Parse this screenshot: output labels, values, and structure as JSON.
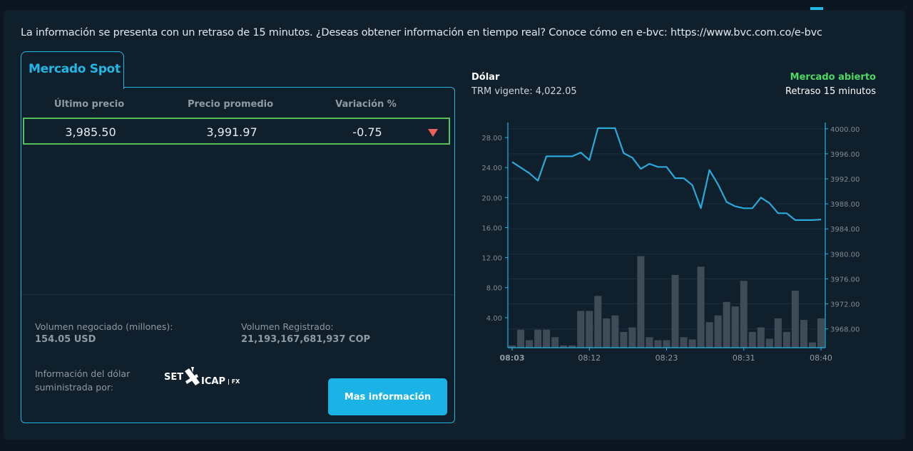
{
  "notice": "La información se presenta con un retraso de 15 minutos. ¿Deseas obtener información en tiempo real? Conoce cómo en e-bvc: https://www.bvc.com.co/e-bvc",
  "tab": {
    "label": "Mercado Spot"
  },
  "table": {
    "headers": [
      "Último precio",
      "Precio promedio",
      "Variación %"
    ],
    "row": {
      "last_price": "3,985.50",
      "avg_price": "3,991.97",
      "variation": "-0.75"
    }
  },
  "volume": {
    "negotiated_label": "Volumen negociado (millones):",
    "negotiated_value": "154.05 USD",
    "registered_label": "Volumen Registrado:",
    "registered_value": "21,193,167,681,937 COP"
  },
  "provider": {
    "label_line1": "Información del dólar",
    "label_line2": "suministrada por:",
    "logo_text": "SET ICAP | FX"
  },
  "button": {
    "label": "Mas información"
  },
  "chart_header": {
    "title": "Dólar",
    "trm": "TRM vigente: 4,022.05",
    "status": "Mercado abierto",
    "delay": "Retraso 15 minutos"
  },
  "colors": {
    "accent": "#22b8e6",
    "line": "#2ba9d8",
    "bars": "#3f4c57",
    "open": "#4cd964",
    "down": "#f0605a",
    "highlight": "#55c05b"
  },
  "chart_data": {
    "type": "bar+line",
    "x_ticks": [
      "08:03",
      "08:12",
      "08:23",
      "08:31",
      "08:40"
    ],
    "x_tick_index": [
      0,
      9,
      18,
      27,
      36
    ],
    "volume_axis": {
      "ticks": [
        "4.00",
        "8.00",
        "12.00",
        "16.00",
        "20.00",
        "24.00",
        "28.00"
      ],
      "range": [
        0,
        30
      ]
    },
    "price_axis": {
      "ticks": [
        "3968.00",
        "3972.00",
        "3976.00",
        "3980.00",
        "3984.00",
        "3988.00",
        "3992.00",
        "3996.00",
        "4000.00"
      ],
      "range": [
        3965,
        4001
      ]
    },
    "series": [
      {
        "kind": "bar",
        "values": [
          0.3,
          2.4,
          1.0,
          2.4,
          2.4,
          1.4,
          0.3,
          0.3,
          4.9,
          4.9,
          6.9,
          3.9,
          4.3,
          2.1,
          2.7,
          12.2,
          1.4,
          1.0,
          1.0,
          9.7,
          1.4,
          1.1,
          10.8,
          3.4,
          4.3,
          6.1,
          5.5,
          8.9,
          2.1,
          2.7,
          1.2,
          3.9,
          2.1,
          7.6,
          3.7,
          0.7,
          3.9
        ]
      },
      {
        "kind": "line",
        "values": [
          3994.7,
          3993.8,
          3992.9,
          3991.7,
          3995.6,
          3995.6,
          3995.6,
          3995.6,
          3996.2,
          3995.0,
          4000.1,
          4000.1,
          4000.1,
          3996.1,
          3995.4,
          3993.6,
          3994.4,
          3993.9,
          3993.9,
          3992.1,
          3992.1,
          3991.0,
          3987.3,
          3993.4,
          3991.1,
          3988.3,
          3987.6,
          3987.3,
          3987.3,
          3989.0,
          3988.1,
          3986.5,
          3986.5,
          3985.4,
          3985.4,
          3985.4,
          3985.5
        ]
      }
    ]
  }
}
